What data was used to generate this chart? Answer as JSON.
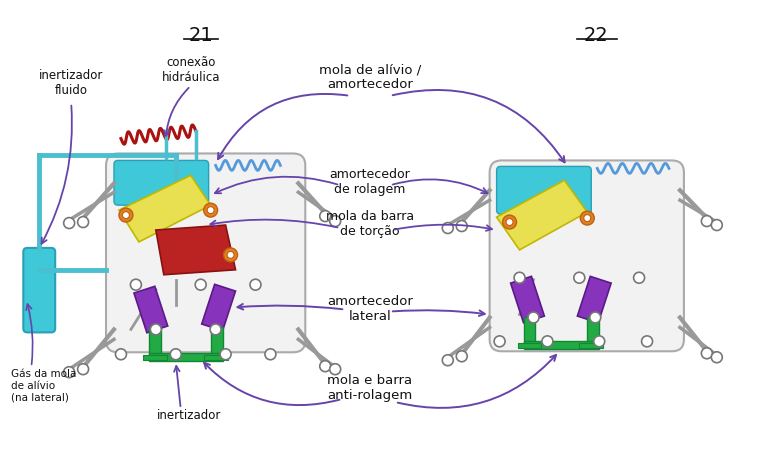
{
  "bg_color": "#ffffff",
  "title_21": "21",
  "title_22": "22",
  "labels": {
    "inertizador_fluido": "inertizador\nfluido",
    "conexao_hidraulica": "conexão\nhidráulica",
    "gas_mola": "Gás da mola\nde alívio\n(na lateral)",
    "inertizador": "inertizador",
    "mola_alivio": "mola de alívio /\namortecedor",
    "amortecedor_rolagem": "amortecedor\nde rolagem",
    "mola_barra_torcao": "mola da barra\nde torção",
    "amortecedor_lateral": "amortecedor\nlateral",
    "mola_barra_anti": "mola e barra\nanti-rolagem"
  },
  "arrow_color": "#6644aa",
  "text_color": "#111111",
  "cyan_color": "#3ec8d8",
  "cyan_dark": "#2aa0b8",
  "cyan_pipe": "#4bbfcf",
  "yellow_color": "#e8e050",
  "red_color": "#bb2222",
  "purple_color": "#8833bb",
  "green_color": "#22aa44",
  "green_dark": "#118833",
  "orange_color": "#e08020",
  "spring_blue": "#5599dd",
  "spring_red": "#aa1111",
  "gray_arm": "#999999",
  "box_fc": "#f2f2f2",
  "box_ec": "#aaaaaa"
}
